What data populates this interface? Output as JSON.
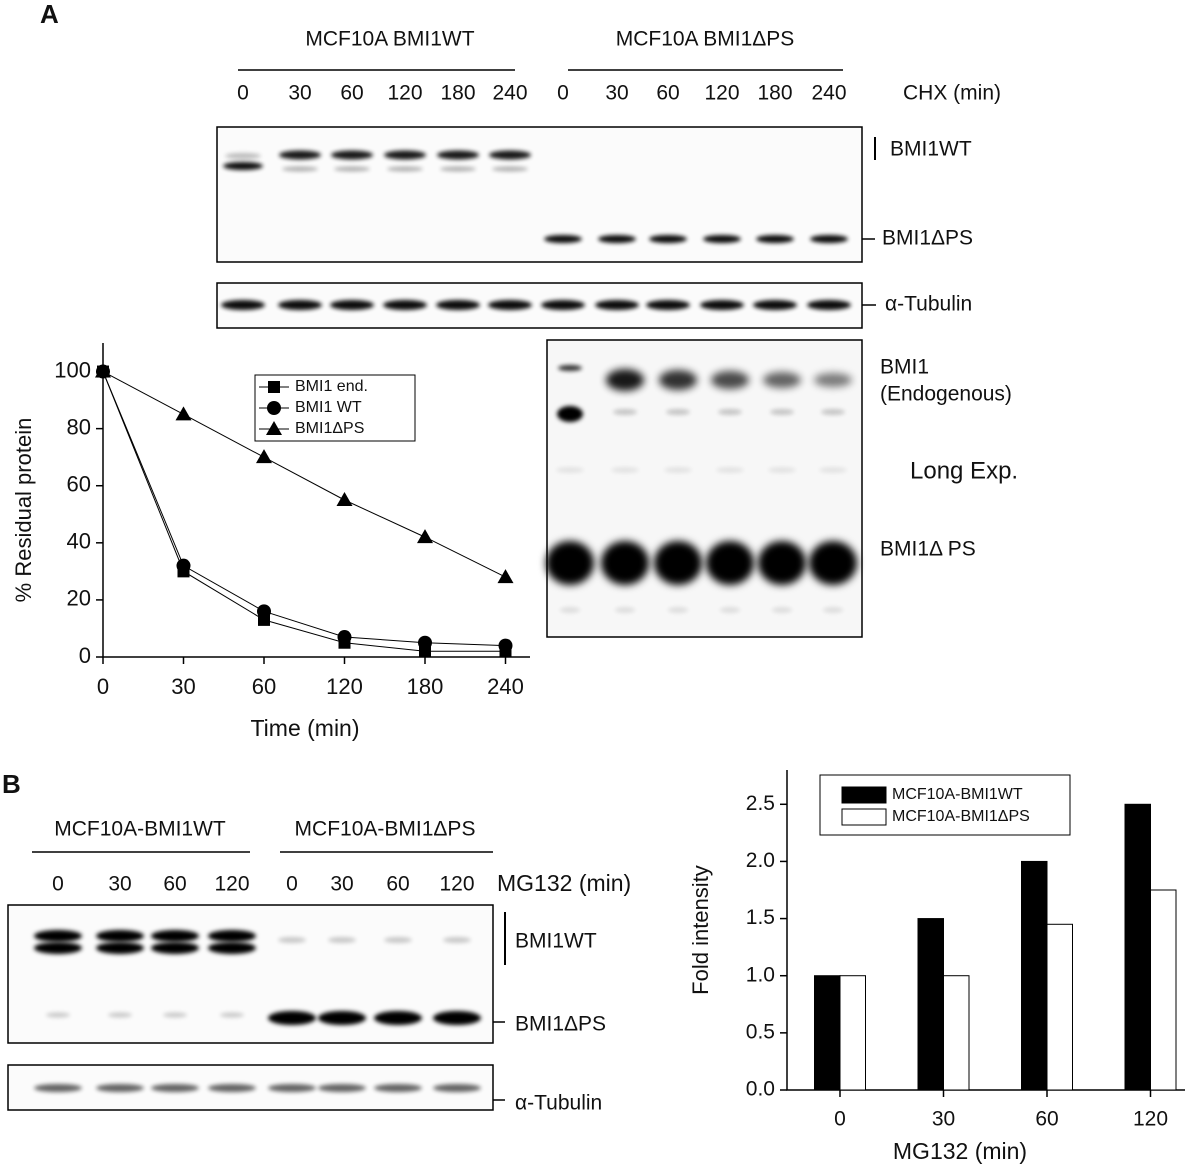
{
  "panel_labels": [
    "A",
    "B"
  ],
  "blot_a": {
    "group_labels": [
      "MCF10A BMI1WT",
      "MCF10A BMI1ΔPS"
    ],
    "lane_labels": [
      "0",
      "30",
      "60",
      "120",
      "180",
      "240",
      "0",
      "30",
      "60",
      "120",
      "180",
      "240"
    ],
    "treatment_label": "CHX (min)",
    "band_labels": [
      "BMI1WT",
      "BMI1ΔPS",
      "α-Tubulin"
    ],
    "long_exp": {
      "band_labels": [
        "BMI1",
        "(Endogenous)",
        "BMI1Δ PS"
      ],
      "exposure_label": "Long Exp."
    }
  },
  "blot_b": {
    "group_labels": [
      "MCF10A-BMI1WT",
      "MCF10A-BMI1ΔPS"
    ],
    "lane_labels": [
      "0",
      "30",
      "60",
      "120",
      "0",
      "30",
      "60",
      "120"
    ],
    "treatment_label": "MG132 (min)",
    "band_labels": [
      "BMI1WT",
      "BMI1ΔPS",
      "α-Tubulin"
    ]
  },
  "chart_data": [
    {
      "type": "line",
      "xlabel": "Time (min)",
      "ylabel": "% Residual protein",
      "categories": [
        "0",
        "30",
        "60",
        "120",
        "180",
        "240"
      ],
      "ylim": [
        0,
        110
      ],
      "yticks": [
        0,
        20,
        40,
        60,
        80,
        100
      ],
      "legend": "upper right",
      "series": [
        {
          "name": "BMI1 end.",
          "color": "#000000",
          "marker": "square",
          "values": [
            100,
            30,
            13,
            5,
            2,
            2
          ]
        },
        {
          "name": "BMI1 WT",
          "color": "#000000",
          "marker": "circle",
          "values": [
            100,
            32,
            16,
            7,
            5,
            4
          ]
        },
        {
          "name": "BMI1ΔPS",
          "color": "#000000",
          "marker": "triangle",
          "values": [
            100,
            85,
            70,
            55,
            42,
            28
          ]
        }
      ]
    },
    {
      "type": "bar",
      "xlabel": "MG132 (min)",
      "ylabel": "Fold intensity",
      "categories": [
        "0",
        "30",
        "60",
        "120"
      ],
      "ylim": [
        0,
        2.8
      ],
      "yticks": [
        {
          "value": 0,
          "label": "0.0"
        },
        {
          "value": 0.5,
          "label": "0.5"
        },
        {
          "value": 1,
          "label": "1.0"
        },
        {
          "value": 1.5,
          "label": "1.5"
        },
        {
          "value": 2,
          "label": "2.0"
        },
        {
          "value": 2.5,
          "label": "2.5"
        }
      ],
      "legend": "upper left",
      "series": [
        {
          "name": "MCF10A-BMI1WT",
          "color": "#000000",
          "values": [
            1,
            1.5,
            2,
            2.5
          ]
        },
        {
          "name": "MCF10A-BMI1ΔPS",
          "color": "#ffffff",
          "values": [
            1,
            1,
            1.45,
            1.75
          ]
        }
      ]
    }
  ]
}
